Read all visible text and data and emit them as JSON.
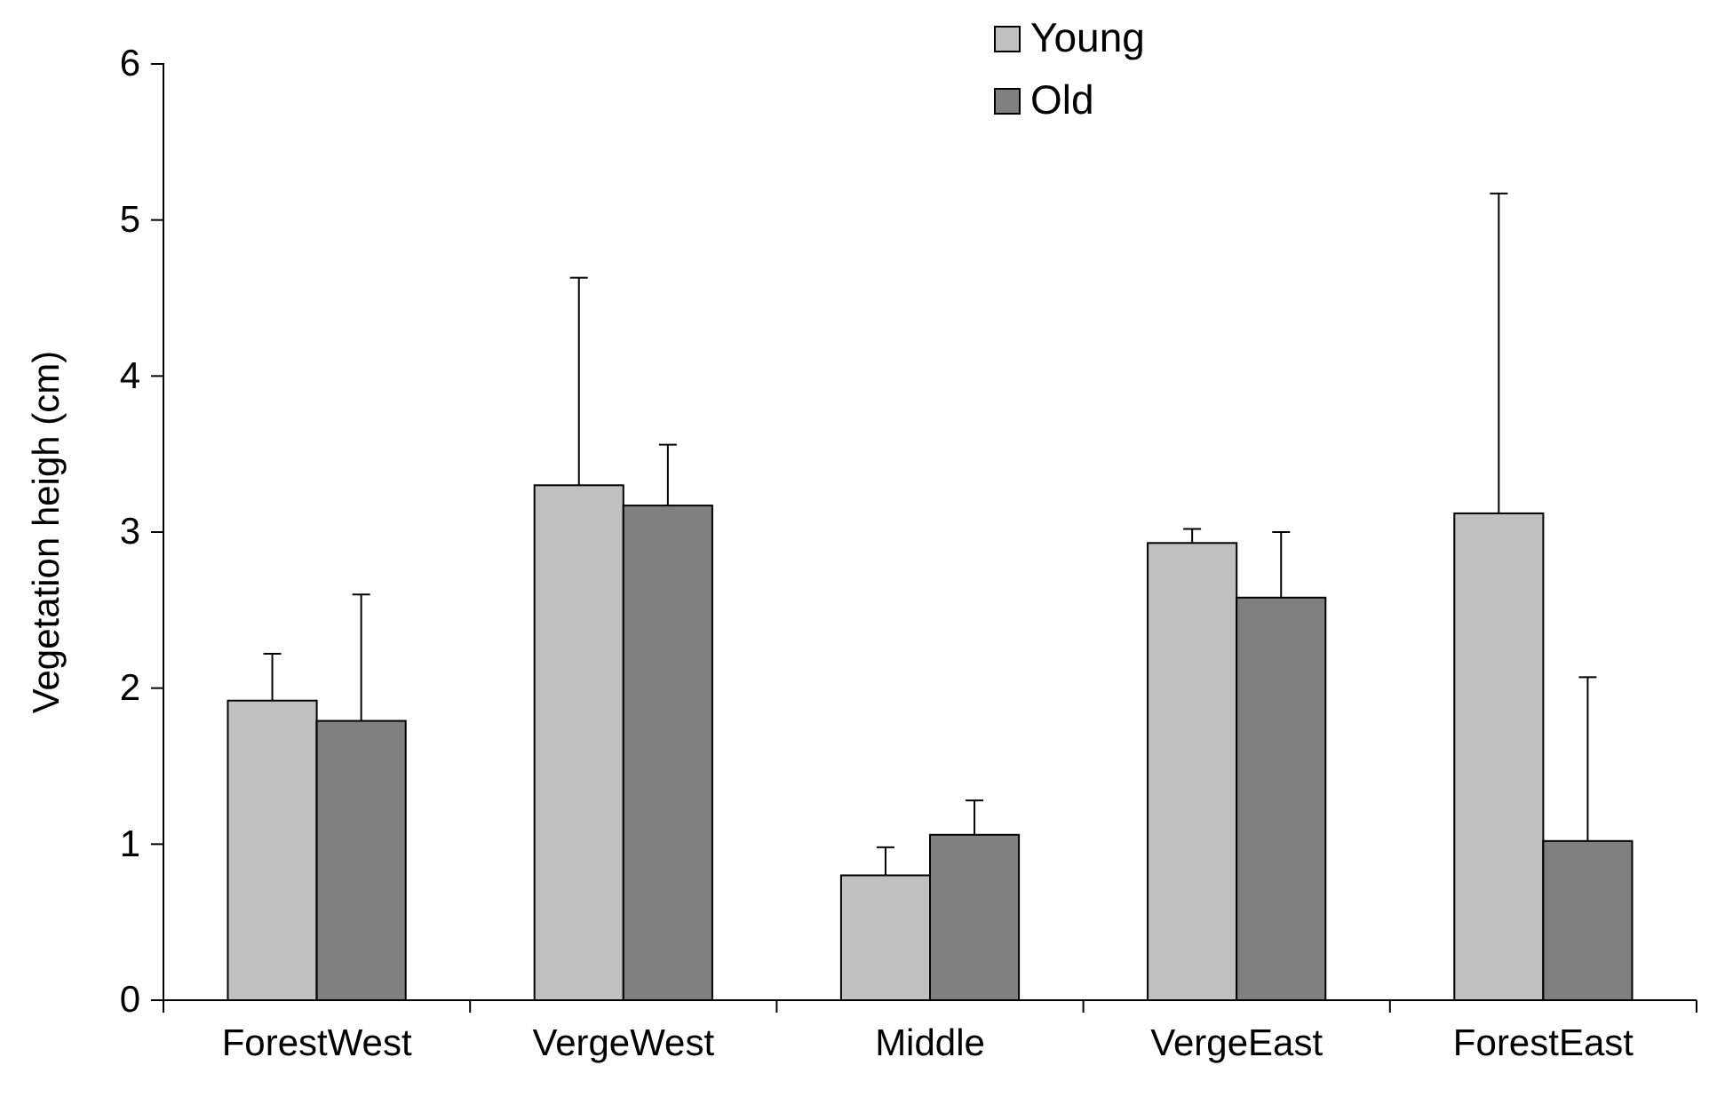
{
  "chart_data": {
    "type": "bar",
    "ylabel": "Vegetation heigh (cm)",
    "categories": [
      "ForestWest",
      "VergeWest",
      "Middle",
      "VergeEast",
      "ForestEast"
    ],
    "series": [
      {
        "name": "Young",
        "color": "#c0c0c0",
        "values": [
          1.92,
          3.3,
          0.8,
          2.93,
          3.12
        ],
        "errors": [
          [
            1.92,
            2.22
          ],
          [
            3.3,
            4.63
          ],
          [
            0.8,
            0.98
          ],
          [
            2.93,
            3.02
          ],
          [
            3.12,
            5.17
          ]
        ]
      },
      {
        "name": "Old",
        "color": "#808080",
        "values": [
          1.79,
          3.17,
          1.06,
          2.58,
          1.02
        ],
        "errors": [
          [
            1.79,
            2.6
          ],
          [
            3.17,
            3.56
          ],
          [
            1.06,
            1.28
          ],
          [
            2.58,
            3.0
          ],
          [
            1.02,
            2.07
          ]
        ]
      }
    ],
    "ylim": [
      0,
      6
    ],
    "yticks": [
      0,
      1,
      2,
      3,
      4,
      5,
      6
    ],
    "legend": "top",
    "grid": false
  }
}
